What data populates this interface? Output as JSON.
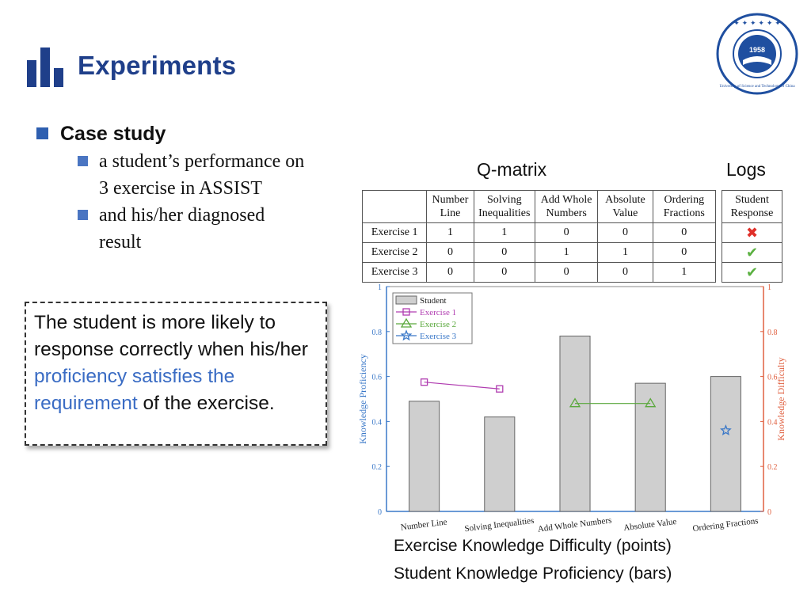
{
  "header": {
    "title": "Experiments",
    "seal_year": "1958",
    "seal_text": "University of Science and Technology of China"
  },
  "bullets": {
    "main": "Case study",
    "sub": [
      {
        "line1": "a student’s performance on",
        "line2": "3 exercise in ASSIST"
      },
      {
        "line1": "and his/her diagnosed",
        "line2": "result"
      }
    ]
  },
  "callout": {
    "part1": "The student is more likely to response correctly when his/her ",
    "highlight": "proficiency satisfies the requirement",
    "part2": " of the exercise."
  },
  "labels": {
    "qmatrix": "Q-matrix",
    "logs": "Logs"
  },
  "qmatrix": {
    "headers": [
      [
        "Number",
        "Line"
      ],
      [
        "Solving",
        "Inequalities"
      ],
      [
        "Add Whole",
        "Numbers"
      ],
      [
        "Absolute",
        "Value"
      ],
      [
        "Ordering",
        "Fractions"
      ]
    ],
    "rows": [
      {
        "name": "Exercise 1",
        "values": [
          "1",
          "1",
          "0",
          "0",
          "0"
        ]
      },
      {
        "name": "Exercise 2",
        "values": [
          "0",
          "0",
          "1",
          "1",
          "0"
        ]
      },
      {
        "name": "Exercise 3",
        "values": [
          "0",
          "0",
          "0",
          "0",
          "1"
        ]
      }
    ]
  },
  "logs": {
    "header": [
      "Student",
      "Response"
    ],
    "responses": [
      "wrong",
      "correct",
      "correct"
    ]
  },
  "chart_data": {
    "type": "bar",
    "categories": [
      "Number Line",
      "Solving Inequalities",
      "Add Whole Numbers",
      "Absolute Value",
      "Ordering Fractions"
    ],
    "values": [
      0.49,
      0.42,
      0.78,
      0.57,
      0.6
    ],
    "series": [
      {
        "name": "Student",
        "type": "bar",
        "values": [
          0.49,
          0.42,
          0.78,
          0.57,
          0.6
        ]
      },
      {
        "name": "Exercise 1",
        "type": "line",
        "marker": "square",
        "color": "#b03cb0",
        "points": [
          [
            0,
            0.575
          ],
          [
            1,
            0.545
          ]
        ]
      },
      {
        "name": "Exercise 2",
        "type": "line",
        "marker": "triangle",
        "color": "#5aa83c",
        "points": [
          [
            2,
            0.48
          ],
          [
            3,
            0.48
          ]
        ]
      },
      {
        "name": "Exercise 3",
        "type": "line",
        "marker": "star",
        "color": "#3a78c8",
        "points": [
          [
            4,
            0.36
          ]
        ]
      }
    ],
    "ylabel": "Knowledge Proficiency",
    "ylabel_right": "Knowledge Difficulty",
    "ylim": [
      0,
      1
    ],
    "yticks": [
      "0",
      "0.2",
      "0.4",
      "0.6",
      "0.8",
      "1"
    ],
    "legend": "top-left",
    "colors": {
      "left_axis": "#3a78c8",
      "right_axis": "#e06040",
      "bar": "#cfcfcf"
    }
  },
  "captions": {
    "line1": "Exercise Knowledge Difficulty (points)",
    "line2": "Student Knowledge Proficiency (bars)"
  }
}
